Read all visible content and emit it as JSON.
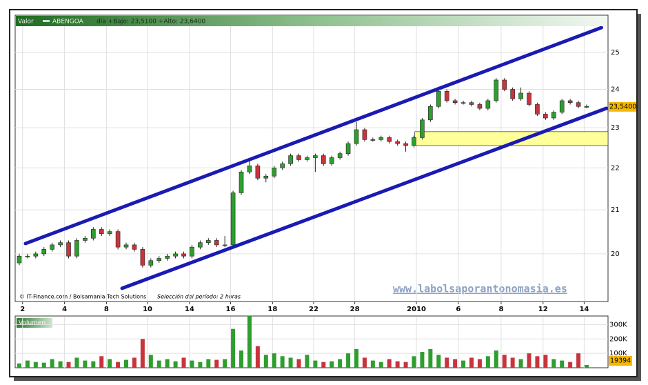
{
  "chart_data": {
    "type": "candlestick",
    "series_label": "Valor",
    "symbol": "ABENGOA",
    "header_info": "día +Bajo: 23,5100 +Alto: 23,6400",
    "source": "© IT-Finance.com / Bolsamania Tech Solutions",
    "period": "Selección del período: 2 horas",
    "watermark": "www.labolsaporantonomasia.es",
    "log_y": true,
    "grid": true,
    "up_color": "#2e9e2e",
    "down_color": "#c8343c",
    "x": [
      0,
      1,
      2,
      3,
      4,
      5,
      6,
      7,
      8,
      9,
      10,
      11,
      12,
      13,
      14,
      15,
      16,
      17,
      18,
      19,
      20,
      21,
      22,
      23,
      24,
      25,
      26,
      27,
      28,
      29,
      30,
      31,
      32,
      33,
      34,
      35,
      36,
      37,
      38,
      39,
      40,
      41,
      42,
      43,
      44,
      45,
      46,
      47,
      48,
      49,
      50,
      51,
      52,
      53,
      54,
      55,
      56,
      57,
      58,
      59,
      60,
      61,
      62,
      63,
      64,
      65,
      66,
      67,
      68,
      69
    ],
    "candles": {
      "open": [
        19.8,
        19.95,
        19.95,
        20.0,
        20.1,
        20.2,
        20.25,
        19.95,
        20.3,
        20.35,
        20.55,
        20.45,
        20.5,
        20.15,
        20.2,
        20.1,
        19.75,
        19.85,
        19.9,
        19.95,
        20.0,
        19.95,
        20.15,
        20.25,
        20.3,
        20.2,
        20.2,
        21.4,
        21.9,
        22.05,
        21.75,
        21.8,
        22.0,
        22.1,
        22.3,
        22.2,
        22.25,
        22.3,
        22.1,
        22.25,
        22.35,
        22.6,
        22.95,
        22.7,
        22.7,
        22.75,
        22.65,
        22.6,
        22.55,
        22.75,
        23.2,
        23.55,
        23.95,
        23.7,
        23.65,
        23.65,
        23.6,
        23.5,
        23.7,
        24.25,
        24.0,
        23.75,
        23.9,
        23.6,
        23.35,
        23.25,
        23.4,
        23.7,
        23.65,
        23.55
      ],
      "high": [
        20.0,
        20.0,
        20.05,
        20.15,
        20.25,
        20.3,
        20.3,
        20.35,
        20.4,
        20.6,
        20.6,
        20.55,
        20.55,
        20.25,
        20.25,
        20.15,
        19.9,
        19.95,
        20.0,
        20.05,
        20.05,
        20.2,
        20.3,
        20.35,
        20.35,
        20.4,
        21.45,
        21.95,
        22.2,
        22.1,
        21.85,
        22.05,
        22.15,
        22.35,
        22.35,
        22.3,
        22.35,
        22.35,
        22.3,
        22.4,
        22.65,
        23.15,
        23.0,
        22.75,
        22.8,
        22.8,
        22.7,
        22.65,
        22.8,
        23.25,
        23.6,
        24.0,
        24.0,
        23.75,
        23.7,
        23.7,
        23.65,
        23.75,
        24.3,
        24.3,
        24.05,
        24.05,
        23.95,
        23.65,
        23.4,
        23.45,
        23.75,
        23.75,
        23.7,
        23.6
      ],
      "low": [
        19.75,
        19.9,
        19.9,
        19.95,
        20.05,
        20.15,
        19.9,
        19.9,
        20.25,
        20.3,
        20.4,
        20.4,
        20.1,
        20.1,
        20.05,
        19.7,
        19.7,
        19.8,
        19.85,
        19.9,
        19.9,
        19.9,
        20.1,
        20.2,
        20.15,
        20.15,
        20.15,
        21.35,
        21.85,
        21.7,
        21.65,
        21.75,
        21.95,
        22.05,
        22.15,
        22.15,
        21.9,
        22.05,
        22.05,
        22.2,
        22.3,
        22.55,
        22.65,
        22.65,
        22.65,
        22.6,
        22.55,
        22.4,
        22.5,
        22.7,
        23.15,
        23.5,
        23.65,
        23.6,
        23.6,
        23.55,
        23.45,
        23.45,
        23.65,
        23.95,
        23.7,
        23.7,
        23.55,
        23.3,
        23.2,
        23.2,
        23.35,
        23.6,
        23.5,
        23.5
      ],
      "close": [
        19.95,
        19.95,
        20.0,
        20.1,
        20.2,
        20.25,
        19.95,
        20.3,
        20.35,
        20.55,
        20.45,
        20.5,
        20.15,
        20.2,
        20.1,
        19.75,
        19.85,
        19.9,
        19.95,
        20.0,
        19.95,
        20.15,
        20.25,
        20.3,
        20.2,
        20.2,
        21.4,
        21.9,
        22.05,
        21.75,
        21.8,
        22.0,
        22.1,
        22.3,
        22.2,
        22.25,
        22.3,
        22.1,
        22.25,
        22.35,
        22.6,
        22.95,
        22.7,
        22.7,
        22.75,
        22.65,
        22.6,
        22.55,
        22.75,
        23.2,
        23.55,
        23.95,
        23.7,
        23.65,
        23.65,
        23.6,
        23.5,
        23.7,
        24.25,
        24.0,
        23.75,
        23.9,
        23.6,
        23.35,
        23.25,
        23.4,
        23.7,
        23.65,
        23.55,
        23.55
      ]
    },
    "last_price": {
      "value": 23.54,
      "label": "23,5400"
    },
    "ylim": [
      19.0,
      25.7
    ],
    "yticks": [
      20,
      21,
      22,
      23,
      24,
      25
    ],
    "xlim": [
      -0.5,
      71.6
    ],
    "xticks": [
      {
        "value": 0.4,
        "label": "2"
      },
      {
        "value": 5.5,
        "label": "4"
      },
      {
        "value": 10.6,
        "label": "8"
      },
      {
        "value": 15.6,
        "label": "10"
      },
      {
        "value": 20.7,
        "label": "14"
      },
      {
        "value": 25.7,
        "label": "16"
      },
      {
        "value": 30.8,
        "label": "18"
      },
      {
        "value": 35.8,
        "label": "22"
      },
      {
        "value": 40.8,
        "label": "28"
      },
      {
        "value": 48.3,
        "label": "2010"
      },
      {
        "value": 53.4,
        "label": "6"
      },
      {
        "value": 58.6,
        "label": "8"
      },
      {
        "value": 63.7,
        "label": "12"
      },
      {
        "value": 68.7,
        "label": "14"
      }
    ],
    "trendlines": [
      {
        "color": "#1a1ab4",
        "x": [
          0.76,
          70.8
        ],
        "y": [
          20.23,
          25.7
        ]
      },
      {
        "color": "#1a1ab4",
        "x": [
          12.5,
          71.4
        ],
        "y": [
          19.25,
          23.5
        ]
      }
    ],
    "zone": {
      "color": "#ffff99",
      "x": [
        48.1
      ],
      "y": [
        22.55,
        22.9
      ]
    },
    "volume": {
      "title": "Volumen",
      "values": [
        30000,
        50000,
        40000,
        35000,
        60000,
        45000,
        40000,
        70000,
        50000,
        45000,
        80000,
        60000,
        40000,
        55000,
        70000,
        200000,
        90000,
        50000,
        60000,
        45000,
        70000,
        50000,
        40000,
        60000,
        55000,
        60000,
        270000,
        120000,
        360000,
        150000,
        90000,
        100000,
        80000,
        70000,
        60000,
        90000,
        50000,
        40000,
        45000,
        60000,
        100000,
        130000,
        70000,
        50000,
        40000,
        60000,
        45000,
        40000,
        80000,
        110000,
        130000,
        90000,
        70000,
        60000,
        50000,
        70000,
        60000,
        80000,
        120000,
        90000,
        70000,
        60000,
        100000,
        80000,
        90000,
        60000,
        50000,
        40000,
        100000,
        19394
      ],
      "ylim": [
        0,
        350000
      ],
      "yticks": [
        {
          "value": 100000,
          "label": "100K"
        },
        {
          "value": 200000,
          "label": "200K"
        },
        {
          "value": 300000,
          "label": "300K"
        }
      ]
    }
  }
}
